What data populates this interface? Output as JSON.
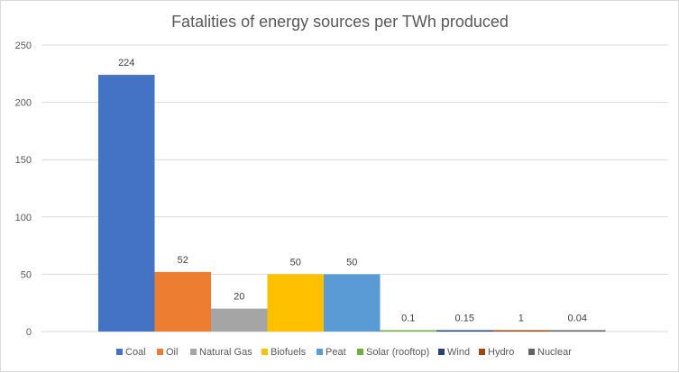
{
  "chart_data": {
    "type": "bar",
    "title": "Fatalities of energy sources per TWh produced",
    "xlabel": "",
    "ylabel": "",
    "ylim": [
      0,
      250
    ],
    "yticks": [
      "0",
      "50",
      "100",
      "150",
      "200",
      "250"
    ],
    "grid": true,
    "legend_position": "bottom",
    "series": [
      {
        "name": "Coal",
        "value": 224,
        "label": "224",
        "color": "#4472C4"
      },
      {
        "name": "Oil",
        "value": 52,
        "label": "52",
        "color": "#ED7D31"
      },
      {
        "name": "Natural Gas",
        "value": 20,
        "label": "20",
        "color": "#A5A5A5"
      },
      {
        "name": "Biofuels",
        "value": 50,
        "label": "50",
        "color": "#FFC000"
      },
      {
        "name": "Peat",
        "value": 50,
        "label": "50",
        "color": "#5B9BD5"
      },
      {
        "name": "Solar (rooftop)",
        "value": 0.1,
        "label": "0.1",
        "color": "#70AD47"
      },
      {
        "name": "Wind",
        "value": 0.15,
        "label": "0.15",
        "color": "#264478"
      },
      {
        "name": "Hydro",
        "value": 1,
        "label": "1",
        "color": "#9E480E"
      },
      {
        "name": "Nuclear",
        "value": 0.04,
        "label": "0.04",
        "color": "#636363"
      }
    ]
  }
}
